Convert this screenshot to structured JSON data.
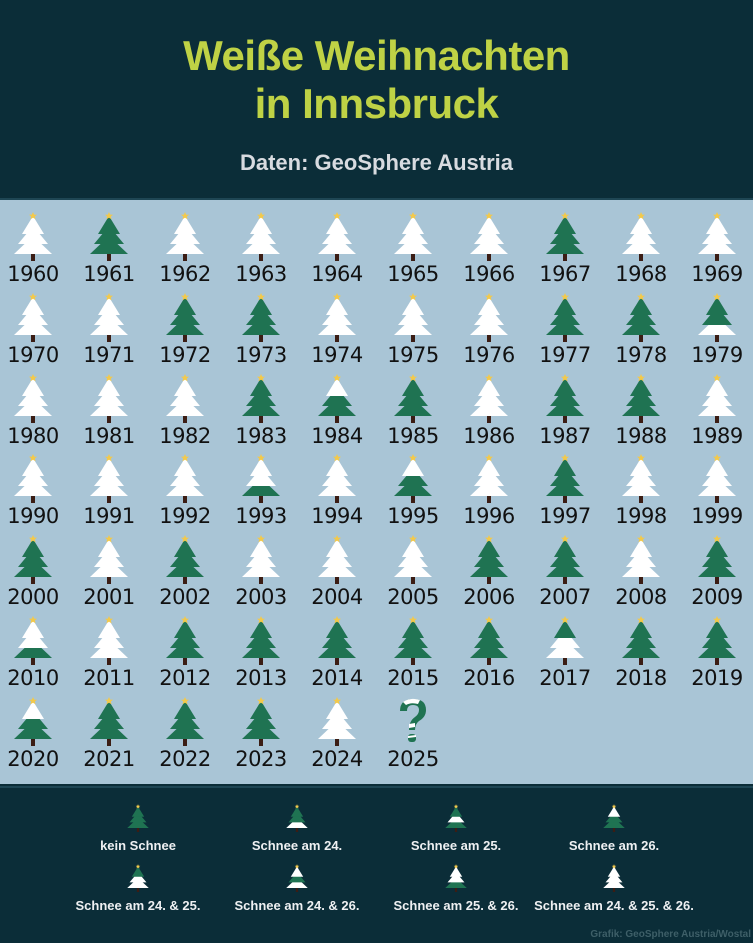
{
  "header": {
    "title_line1": "Weiße Weihnachten",
    "title_line2": "in Innsbruck",
    "subtitle": "Daten: GeoSphere Austria"
  },
  "colors": {
    "background_dark": "#0b2d38",
    "panel": "#a9c5d6",
    "title": "#bfd245",
    "tree_green": "#1f7352",
    "snow": "#ffffff",
    "star": "#f2c94c",
    "trunk": "#3b1d14"
  },
  "legend": {
    "items": [
      {
        "state": "none",
        "label": "kein Schnee"
      },
      {
        "state": "24",
        "label": "Schnee am 24."
      },
      {
        "state": "25",
        "label": "Schnee am 25."
      },
      {
        "state": "26",
        "label": "Schnee am 26."
      },
      {
        "state": "24-25",
        "label": "Schnee am 24. & 25."
      },
      {
        "state": "24-26",
        "label": "Schnee am 24. & 26."
      },
      {
        "state": "25-26",
        "label": "Schnee am 25. & 26."
      },
      {
        "state": "all",
        "label": "Schnee am 24. & 25. & 26."
      }
    ]
  },
  "credit": "Grafik: GeoSphere Austria/Wostal",
  "chart_data": {
    "type": "table",
    "title": "Weiße Weihnachten in Innsbruck",
    "subtitle": "Daten: GeoSphere Austria",
    "legend": {
      "none": "kein Schnee",
      "24": "Schnee am 24.",
      "25": "Schnee am 25.",
      "26": "Schnee am 26.",
      "24-25": "Schnee am 24. & 25.",
      "24-26": "Schnee am 24. & 26.",
      "25-26": "Schnee am 25. & 26.",
      "all": "Schnee am 24. & 25. & 26."
    },
    "years": [
      {
        "year": "1960",
        "state": "all"
      },
      {
        "year": "1961",
        "state": "none"
      },
      {
        "year": "1962",
        "state": "all"
      },
      {
        "year": "1963",
        "state": "all"
      },
      {
        "year": "1964",
        "state": "all"
      },
      {
        "year": "1965",
        "state": "all"
      },
      {
        "year": "1966",
        "state": "all"
      },
      {
        "year": "1967",
        "state": "none"
      },
      {
        "year": "1968",
        "state": "all"
      },
      {
        "year": "1969",
        "state": "all"
      },
      {
        "year": "1970",
        "state": "all"
      },
      {
        "year": "1971",
        "state": "all"
      },
      {
        "year": "1972",
        "state": "none"
      },
      {
        "year": "1973",
        "state": "none"
      },
      {
        "year": "1974",
        "state": "all"
      },
      {
        "year": "1975",
        "state": "all"
      },
      {
        "year": "1976",
        "state": "all"
      },
      {
        "year": "1977",
        "state": "none"
      },
      {
        "year": "1978",
        "state": "none"
      },
      {
        "year": "1979",
        "state": "24"
      },
      {
        "year": "1980",
        "state": "all"
      },
      {
        "year": "1981",
        "state": "all"
      },
      {
        "year": "1982",
        "state": "all"
      },
      {
        "year": "1983",
        "state": "none"
      },
      {
        "year": "1984",
        "state": "26"
      },
      {
        "year": "1985",
        "state": "none"
      },
      {
        "year": "1986",
        "state": "all"
      },
      {
        "year": "1987",
        "state": "none"
      },
      {
        "year": "1988",
        "state": "none"
      },
      {
        "year": "1989",
        "state": "all"
      },
      {
        "year": "1990",
        "state": "all"
      },
      {
        "year": "1991",
        "state": "all"
      },
      {
        "year": "1992",
        "state": "all"
      },
      {
        "year": "1993",
        "state": "25-26"
      },
      {
        "year": "1994",
        "state": "all"
      },
      {
        "year": "1995",
        "state": "26"
      },
      {
        "year": "1996",
        "state": "all"
      },
      {
        "year": "1997",
        "state": "none"
      },
      {
        "year": "1998",
        "state": "all"
      },
      {
        "year": "1999",
        "state": "all"
      },
      {
        "year": "2000",
        "state": "none"
      },
      {
        "year": "2001",
        "state": "all"
      },
      {
        "year": "2002",
        "state": "none"
      },
      {
        "year": "2003",
        "state": "all"
      },
      {
        "year": "2004",
        "state": "all"
      },
      {
        "year": "2005",
        "state": "all"
      },
      {
        "year": "2006",
        "state": "none"
      },
      {
        "year": "2007",
        "state": "none"
      },
      {
        "year": "2008",
        "state": "all"
      },
      {
        "year": "2009",
        "state": "none"
      },
      {
        "year": "2010",
        "state": "25-26"
      },
      {
        "year": "2011",
        "state": "all"
      },
      {
        "year": "2012",
        "state": "none"
      },
      {
        "year": "2013",
        "state": "none"
      },
      {
        "year": "2014",
        "state": "none"
      },
      {
        "year": "2015",
        "state": "none"
      },
      {
        "year": "2016",
        "state": "none"
      },
      {
        "year": "2017",
        "state": "24-25"
      },
      {
        "year": "2018",
        "state": "none"
      },
      {
        "year": "2019",
        "state": "none"
      },
      {
        "year": "2020",
        "state": "26"
      },
      {
        "year": "2021",
        "state": "none"
      },
      {
        "year": "2022",
        "state": "none"
      },
      {
        "year": "2023",
        "state": "none"
      },
      {
        "year": "2024",
        "state": "all"
      },
      {
        "year": "2025",
        "state": "unknown"
      }
    ]
  }
}
